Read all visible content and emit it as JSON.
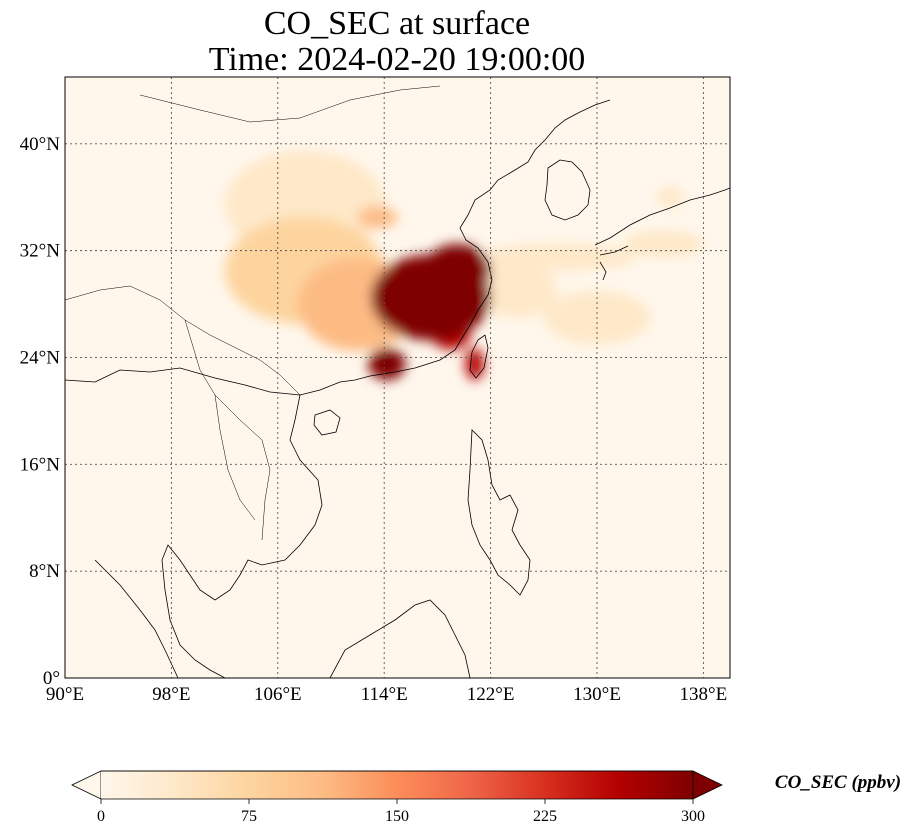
{
  "title": {
    "line1": "CO_SEC at surface",
    "line2": "Time: 2024-02-20 19:00:00"
  },
  "map": {
    "lon_range": [
      90,
      140
    ],
    "lat_range": [
      0,
      45
    ],
    "lon_ticks": [
      {
        "value": 90,
        "label": "90°E"
      },
      {
        "value": 98,
        "label": "98°E"
      },
      {
        "value": 106,
        "label": "106°E"
      },
      {
        "value": 114,
        "label": "114°E"
      },
      {
        "value": 122,
        "label": "122°E"
      },
      {
        "value": 130,
        "label": "130°E"
      },
      {
        "value": 138,
        "label": "138°E"
      }
    ],
    "lat_ticks": [
      {
        "value": 0,
        "label": "0°"
      },
      {
        "value": 8,
        "label": "8°N"
      },
      {
        "value": 16,
        "label": "16°N"
      },
      {
        "value": 24,
        "label": "24°N"
      },
      {
        "value": 32,
        "label": "32°N"
      },
      {
        "value": 40,
        "label": "40°N"
      }
    ],
    "gridlines": true,
    "coastlines": true,
    "borders": true,
    "colormap": "OrRd",
    "plumes": [
      {
        "lon": 117.5,
        "lat": 28.5,
        "value": 300,
        "rx": 4.5,
        "ry": 3.2
      },
      {
        "lon": 119.5,
        "lat": 30.5,
        "value": 300,
        "rx": 2.5,
        "ry": 2.0
      },
      {
        "lon": 114.2,
        "lat": 23.5,
        "value": 300,
        "rx": 1.4,
        "ry": 1.2
      },
      {
        "lon": 119.0,
        "lat": 25.8,
        "value": 250,
        "rx": 1.5,
        "ry": 1.2
      },
      {
        "lon": 120.8,
        "lat": 23.5,
        "value": 280,
        "rx": 0.7,
        "ry": 1.2
      },
      {
        "lon": 113.5,
        "lat": 34.5,
        "value": 130,
        "rx": 1.5,
        "ry": 0.8
      },
      {
        "lon": 112.0,
        "lat": 28.0,
        "value": 120,
        "rx": 4.5,
        "ry": 3.5
      },
      {
        "lon": 108.0,
        "lat": 30.5,
        "value": 60,
        "rx": 6.0,
        "ry": 4.0
      },
      {
        "lon": 108.0,
        "lat": 35.5,
        "value": 40,
        "rx": 6.0,
        "ry": 4.0
      },
      {
        "lon": 127.0,
        "lat": 31.5,
        "value": 45,
        "rx": 6.0,
        "ry": 1.0
      },
      {
        "lon": 135.0,
        "lat": 32.5,
        "value": 40,
        "rx": 3.0,
        "ry": 1.0
      },
      {
        "lon": 135.5,
        "lat": 36.0,
        "value": 55,
        "rx": 1.0,
        "ry": 0.8
      },
      {
        "lon": 124.0,
        "lat": 29.0,
        "value": 50,
        "rx": 3.0,
        "ry": 2.0
      },
      {
        "lon": 130.0,
        "lat": 27.0,
        "value": 25,
        "rx": 4.0,
        "ry": 2.0
      }
    ]
  },
  "colorbar": {
    "label": "CO_SEC (ppbv)",
    "min": 0,
    "max": 300,
    "extend": "both",
    "ticks": [
      {
        "value": 0,
        "label": "0"
      },
      {
        "value": 75,
        "label": "75"
      },
      {
        "value": 150,
        "label": "150"
      },
      {
        "value": 225,
        "label": "225"
      },
      {
        "value": 300,
        "label": "300"
      }
    ],
    "colors": [
      "#fff7ec",
      "#fee8c8",
      "#fdd49e",
      "#fdbb84",
      "#fc8d59",
      "#ef6548",
      "#d7301f",
      "#b30000",
      "#7f0000"
    ],
    "under_color": "#fff7ec",
    "over_color": "#7f0000"
  }
}
